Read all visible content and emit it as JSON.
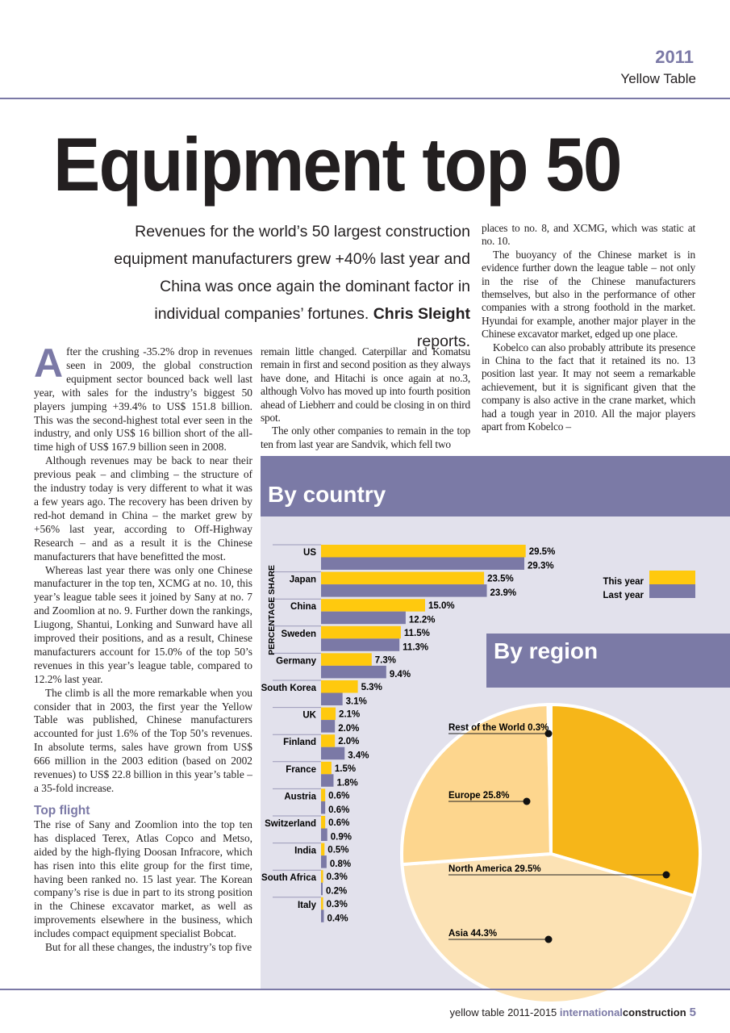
{
  "header": {
    "year": "2011",
    "section": "Yellow Table"
  },
  "title": "Equipment top 50",
  "standfirst": {
    "text": "Revenues for the world’s 50 largest construction equipment manufacturers grew +40% last year and China was once again the dominant factor in individual companies’ fortunes.",
    "author": "Chris Sleight",
    "tail": "reports."
  },
  "col1": {
    "dropcap": "A",
    "p1": "fter the crushing -35.2% drop in revenues seen in 2009, the global construction equipment sector bounced back well last year, with sales for the industry’s biggest 50 players jumping +39.4% to US$ 151.8 billion. This was the second-highest total ever seen in the industry, and only US$ 16 billion short of the all-time high of US$ 167.9 billion seen in 2008.",
    "p2": "Although revenues may be back to near their previous peak – and climbing – the structure of the industry today is very different to what it was a few years ago. The recovery has been driven by red-hot demand in China – the market grew by +56% last year, according to Off-Highway Research – and as a result it is the Chinese manufacturers that have benefitted the most.",
    "p3": "Whereas last year there was only one Chinese manufacturer in the top ten, XCMG at no. 10, this year’s league table sees it joined by Sany at no. 7 and Zoomlion at no. 9. Further down the rankings, Liugong, Shantui, Lonking and Sunward have all improved their positions, and as a result, Chinese manufacturers account for 15.0% of the top 50’s revenues in this year’s league table, compared to 12.2% last year.",
    "p4": "The climb is all the more remarkable when you consider that in 2003, the first year the Yellow Table was published, Chinese manufacturers accounted for just 1.6% of the Top 50’s revenues. In absolute terms, sales have grown from US$ 666 million in the 2003 edition (based on 2002 revenues) to US$ 22.8 billion in this year’s table – a 35-fold increase.",
    "heading": "Top flight",
    "p5": "The rise of Sany and Zoomlion into the top ten has displaced Terex, Atlas Copco and Metso, aided by the high-flying Doosan Infracore, which has risen into this elite group for the first time, having been ranked no. 15 last year. The Korean company’s rise is due in part to its strong position in the Chinese excavator market, as well as improvements elsewhere in the business, which includes compact equipment specialist Bobcat.",
    "p6": "But for all these changes, the industry’s top five"
  },
  "col2": {
    "p1": "remain little changed. Caterpillar and Komatsu remain in first and second position as they always have done, and Hitachi is once again at no.3, although Volvo has moved up into fourth position ahead of Liebherr and could be closing in on third spot.",
    "p2": "The only other companies to remain in the top ten from last year are Sandvik, which fell two"
  },
  "col3": {
    "p1": "places to no. 8, and XCMG, which was static at no. 10.",
    "p2": "The buoyancy of the Chinese market is in evidence further down the league table – not only in the rise of the Chinese manufacturers themselves, but also in the performance of other companies with a strong foothold in the market. Hyundai for example, another major player in the Chinese excavator market, edged up one place.",
    "p3": "Kobelco can also probably attribute its presence in China to the fact that it retained its no. 13 position last year. It may not seem a remarkable achievement, but it is significant given that the company is also active in the crane market, which had a tough year in 2010. All the major players apart from Kobelco –"
  },
  "chart_data": [
    {
      "type": "bar",
      "title": "By country",
      "ylabel": "PERCENTAGE SHARE",
      "orientation": "horizontal",
      "categories": [
        "US",
        "Japan",
        "China",
        "Sweden",
        "Germany",
        "South Korea",
        "UK",
        "Finland",
        "France",
        "Austria",
        "Switzerland",
        "India",
        "South Africa",
        "Italy"
      ],
      "series": [
        {
          "name": "This year",
          "color": "#ffc90e",
          "values": [
            29.5,
            23.5,
            15.0,
            11.5,
            7.3,
            5.3,
            2.1,
            2.0,
            1.5,
            0.6,
            0.6,
            0.5,
            0.3,
            0.3
          ],
          "labels": [
            "29.5%",
            "23.5%",
            "15.0%",
            "11.5%",
            "7.3%",
            "5.3%",
            "2.1%",
            "2.0%",
            "1.5%",
            "0.6%",
            "0.6%",
            "0.5%",
            "0.3%",
            "0.3%"
          ]
        },
        {
          "name": "Last year",
          "color": "#7b79a6",
          "values": [
            29.3,
            23.9,
            12.2,
            11.3,
            9.4,
            3.1,
            2.0,
            3.4,
            1.8,
            0.6,
            0.9,
            0.8,
            0.2,
            0.4
          ],
          "labels": [
            "29.3%",
            "23.9%",
            "12.2%",
            "11.3%",
            "9.4%",
            "3.1%",
            "2.0%",
            "3.4%",
            "1.8%",
            "0.6%",
            "0.9%",
            "0.8%",
            "0.2%",
            "0.4%"
          ]
        }
      ],
      "legend": "right"
    },
    {
      "type": "pie",
      "title": "By region",
      "slices": [
        {
          "label": "North America",
          "value": 29.5,
          "text": "North America  29.5%",
          "color": "#f6b619"
        },
        {
          "label": "Asia",
          "value": 44.3,
          "text": "Asia  44.3%",
          "color": "#fce2b4"
        },
        {
          "label": "Europe",
          "value": 25.8,
          "text": "Europe  25.8%",
          "color": "#fdd68e"
        },
        {
          "label": "Rest of the World",
          "value": 0.3,
          "text": "Rest of the World  0.3%",
          "color": "#c8c6d4"
        }
      ]
    }
  ],
  "footer": {
    "text": "yellow table 2011-2015",
    "pub1": "international",
    "pub2": "construction",
    "page": "5"
  }
}
